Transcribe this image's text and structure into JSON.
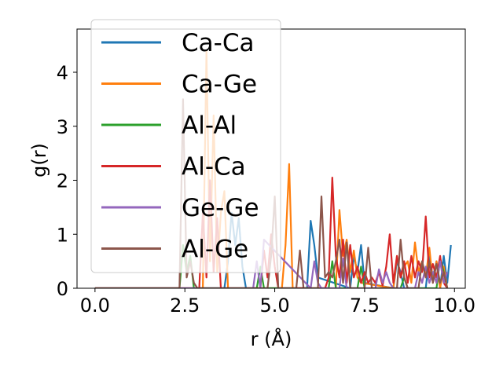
{
  "chart_data": {
    "type": "line",
    "xlabel": "r (Å)",
    "ylabel": "g(r)",
    "xlim": [
      -0.5,
      10.3
    ],
    "ylim": [
      0,
      4.8
    ],
    "xticks": [
      0.0,
      2.5,
      5.0,
      7.5,
      10.0
    ],
    "xtick_labels": [
      "0.0",
      "2.5",
      "5.0",
      "7.5",
      "10.0"
    ],
    "yticks": [
      0,
      1,
      2,
      3,
      4
    ],
    "ytick_labels": [
      "0",
      "1",
      "2",
      "3",
      "4"
    ],
    "legend_position": "top-left",
    "series": [
      {
        "name": "Ca-Ca",
        "color": "#1f77b4",
        "x": [
          0,
          3.6,
          3.7,
          3.8,
          3.9,
          4.0,
          4.1,
          4.2,
          5.9,
          6.0,
          6.1,
          6.2,
          7.1,
          7.2,
          7.3,
          7.4,
          7.5,
          8.3,
          8.4,
          8.5,
          8.6,
          9.2,
          9.3,
          9.4,
          9.5,
          9.6,
          9.7,
          9.8,
          9.9
        ],
        "y": [
          0,
          0,
          0.5,
          1.4,
          0.8,
          1.3,
          0.4,
          0,
          0,
          1.25,
          0.8,
          0.2,
          0,
          0.6,
          0.3,
          0.8,
          0.1,
          0,
          0.5,
          0.3,
          0,
          0,
          0.6,
          0.2,
          0.5,
          0,
          0.6,
          0.1,
          0.8
        ]
      },
      {
        "name": "Ca-Ge",
        "color": "#ff7f0e",
        "x": [
          0,
          3.0,
          3.1,
          3.2,
          3.3,
          3.4,
          3.5,
          3.6,
          3.7,
          5.2,
          5.3,
          5.4,
          5.5,
          6.7,
          6.8,
          6.9,
          7.0,
          7.1,
          7.2,
          7.3,
          7.4,
          8.3,
          8.4,
          8.5,
          8.6,
          8.7,
          8.8,
          8.9,
          9.0,
          9.1,
          9.2,
          9.3,
          9.4,
          9.5,
          9.6,
          9.7,
          9.8
        ],
        "y": [
          0,
          0,
          4.4,
          0.5,
          3.2,
          0.3,
          1.4,
          1.8,
          0,
          0,
          0.8,
          2.3,
          0,
          0,
          1.45,
          0.6,
          0.9,
          0.3,
          0.7,
          0.2,
          0.1,
          0,
          0.6,
          0.2,
          0.4,
          0.5,
          0.1,
          0.85,
          0.3,
          0.5,
          0.2,
          0.75,
          0.1,
          0.5,
          0,
          0.4,
          0
        ]
      },
      {
        "name": "Al-Al",
        "color": "#2ca02c",
        "x": [
          0,
          2.35,
          2.45,
          2.55,
          2.65,
          2.75,
          4.5,
          4.6,
          4.7,
          6.5,
          6.6,
          6.7,
          7.3,
          7.4,
          7.5,
          8.5,
          8.6,
          8.7,
          9.5,
          9.6,
          9.7,
          9.8
        ],
        "y": [
          0,
          0,
          0.8,
          0.3,
          0.6,
          0,
          0,
          0.4,
          0,
          0,
          0.5,
          0,
          0,
          0.4,
          0,
          0,
          0.2,
          0,
          0,
          0.55,
          0.3,
          0
        ],
        "dense_pairs": []
      },
      {
        "name": "Al-Ca",
        "color": "#d62728",
        "x": [
          0,
          2.9,
          3.0,
          3.1,
          3.2,
          3.3,
          3.4,
          3.5,
          4.6,
          4.7,
          4.8,
          4.9,
          5.0,
          5.1,
          6.4,
          6.5,
          6.6,
          6.7,
          6.8,
          6.9,
          7.0,
          7.1,
          7.2,
          7.3,
          7.4,
          7.5,
          7.6,
          7.7,
          7.8,
          7.9,
          8.0,
          8.1,
          8.2,
          8.3,
          8.4,
          8.5,
          8.6,
          8.7,
          8.8,
          8.9,
          9.0,
          9.1,
          9.2,
          9.3,
          9.4,
          9.5,
          9.6,
          9.7,
          9.8
        ],
        "y": [
          0,
          0,
          1.4,
          0.2,
          2.0,
          0.3,
          1.3,
          0,
          0,
          0.7,
          0.2,
          1.0,
          0.4,
          0,
          0,
          0.2,
          2.05,
          0.6,
          0.2,
          0.9,
          0.1,
          0.8,
          0.2,
          0.4,
          0.1,
          0.3,
          0.1,
          0.2,
          0.1,
          0.3,
          0.05,
          0.4,
          1.0,
          0.1,
          0.6,
          0.2,
          0.5,
          0.1,
          0.6,
          0.2,
          0.5,
          0.3,
          1.33,
          0.2,
          0.45,
          0.2,
          0.6,
          0.1,
          0
        ]
      },
      {
        "name": "Ge-Ge",
        "color": "#9467bd",
        "x": [
          0,
          4.4,
          4.5,
          4.6,
          4.7,
          6.0,
          6.1,
          6.2,
          6.3,
          6.8,
          6.9,
          7.0,
          7.8,
          7.9,
          8.0,
          8.1,
          8.2,
          8.3,
          8.9,
          9.0,
          9.1,
          9.2,
          9.3,
          9.4,
          9.5,
          9.6,
          9.7,
          9.8
        ],
        "y": [
          0,
          0,
          0.5,
          0,
          0.9,
          0,
          0.5,
          0.1,
          0,
          0,
          0.55,
          0,
          0,
          0.35,
          0.1,
          0.3,
          0.1,
          0,
          0,
          0.3,
          0.1,
          0.4,
          0.1,
          0.3,
          0.1,
          0.5,
          0.1,
          0.3
        ]
      },
      {
        "name": "Al-Ge",
        "color": "#8c564b",
        "x": [
          0,
          2.35,
          2.45,
          2.55,
          2.65,
          2.75,
          2.85,
          4.8,
          4.9,
          5.0,
          5.1,
          5.6,
          5.7,
          5.8,
          6.2,
          6.3,
          6.4,
          6.5,
          6.6,
          6.7,
          6.8,
          6.9,
          7.0,
          7.1,
          7.5,
          7.6,
          7.7,
          8.4,
          8.5,
          8.6,
          8.7,
          9.0,
          9.1,
          9.2,
          9.3,
          9.4,
          9.5,
          9.6,
          9.7,
          9.8
        ],
        "y": [
          0,
          0,
          3.5,
          0.2,
          0.5,
          0.1,
          0,
          0,
          0.6,
          1.7,
          0,
          0,
          0.7,
          0,
          0,
          1.7,
          0.2,
          0.3,
          0.2,
          0.5,
          0.9,
          0.1,
          0.85,
          0,
          0,
          0.75,
          0,
          0,
          0.9,
          0.2,
          0,
          0,
          0.5,
          0.2,
          0.5,
          0.1,
          0.45,
          0.1,
          0.3,
          0
        ]
      }
    ]
  }
}
